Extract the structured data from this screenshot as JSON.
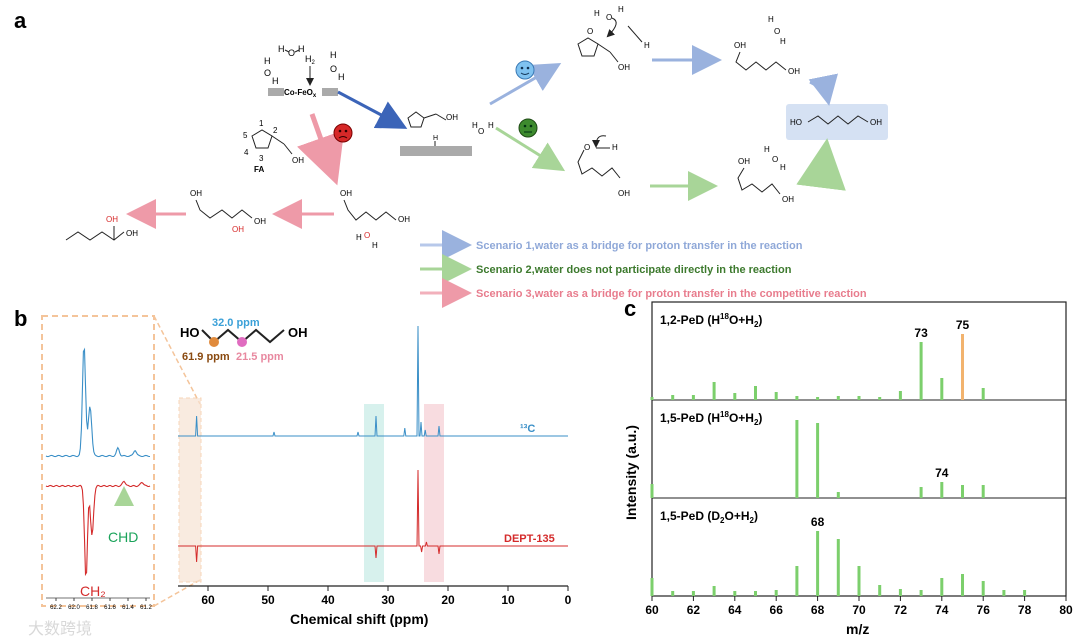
{
  "panels": {
    "a": "a",
    "b": "b",
    "c": "c"
  },
  "panel_a": {
    "catalyst": "Co-FeO",
    "catalyst_sub": "x",
    "fa_label": "FA",
    "ring_numbers": [
      "1",
      "2",
      "3",
      "4",
      "5"
    ],
    "h2o": "H₂O",
    "h2": "H",
    "h2_sub": "2",
    "oh": "OH",
    "o": "O",
    "h": "H",
    "ho": "HO",
    "legend": [
      {
        "text": "Scenario 1,water as a bridge for proton transfer in the reaction",
        "color": "#8fa8d8"
      },
      {
        "text": "Scenario 2,water does not participate directly in the reaction",
        "color": "#3d7a2e"
      },
      {
        "text": "Scenario 3,water as a bridge for proton transfer in the competitive reaction",
        "color": "#e87c8d"
      }
    ]
  },
  "panel_b": {
    "ppm_32": "32.0 ppm",
    "ppm_619": "61.9 ppm",
    "ppm_215": "21.5 ppm",
    "c13": "¹³C",
    "dept": "DEPT-135",
    "chd": "CHD",
    "ch2": "CH₂",
    "xlabel": "Chemical shift (ppm)",
    "inset_ticks": [
      "62.2",
      "62.0",
      "61.8",
      "61.6",
      "61.4",
      "61.2"
    ]
  },
  "chart_data": [
    {
      "type": "line",
      "title": "",
      "xlabel": "Chemical shift (ppm)",
      "ylabel": "",
      "xlim": [
        65,
        0
      ],
      "x_ticks": [
        60,
        50,
        40,
        30,
        20,
        10,
        0
      ],
      "series": [
        {
          "name": "¹³C",
          "peaks_ppm": [
            61.9,
            32.0,
            25.0,
            21.5,
            49.0,
            27.0,
            23.5
          ]
        },
        {
          "name": "DEPT-135",
          "peaks_ppm": [
            61.9,
            32.0,
            25.0,
            21.5
          ]
        }
      ]
    },
    {
      "type": "bar",
      "xlabel": "m/z",
      "ylabel": "Intensity (a.u.)",
      "xlim": [
        60,
        80
      ],
      "x_ticks": [
        60,
        62,
        64,
        66,
        68,
        70,
        72,
        74,
        76,
        78,
        80
      ],
      "subplots": [
        {
          "label_main": "1,2-PeD (H",
          "label_sup": "18",
          "label_end": "O+H",
          "label_sub": "2",
          "peak_labels": [
            {
              "mz": 73,
              "text": "73"
            },
            {
              "mz": 75,
              "text": "75"
            }
          ],
          "x": [
            60,
            61,
            62,
            63,
            64,
            65,
            66,
            67,
            68,
            69,
            70,
            71,
            72,
            73,
            74,
            75,
            76
          ],
          "values": [
            3,
            5,
            5,
            18,
            7,
            14,
            8,
            4,
            3,
            4,
            4,
            3,
            9,
            58,
            22,
            66,
            12
          ],
          "highlight": 75
        },
        {
          "label_main": "1,5-PeD (H",
          "label_sup": "18",
          "label_end": "O+H",
          "label_sub": "2",
          "peak_labels": [
            {
              "mz": 74,
              "text": "74"
            }
          ],
          "x": [
            60,
            67,
            68,
            69,
            73,
            74,
            75,
            76
          ],
          "values": [
            14,
            78,
            75,
            6,
            11,
            16,
            13,
            13
          ]
        },
        {
          "label_main": "1,5-PeD (D",
          "label_sup": "",
          "label_end": "O+H",
          "label_sub": "2",
          "peak_labels": [
            {
              "mz": 68,
              "text": "68"
            }
          ],
          "x": [
            60,
            61,
            62,
            63,
            64,
            65,
            66,
            67,
            68,
            69,
            70,
            71,
            72,
            73,
            74,
            75,
            76,
            77,
            78
          ],
          "values": [
            18,
            5,
            5,
            10,
            5,
            5,
            6,
            30,
            65,
            57,
            30,
            11,
            7,
            6,
            18,
            22,
            15,
            6,
            6
          ]
        }
      ]
    }
  ],
  "watermark": "大数跨境"
}
